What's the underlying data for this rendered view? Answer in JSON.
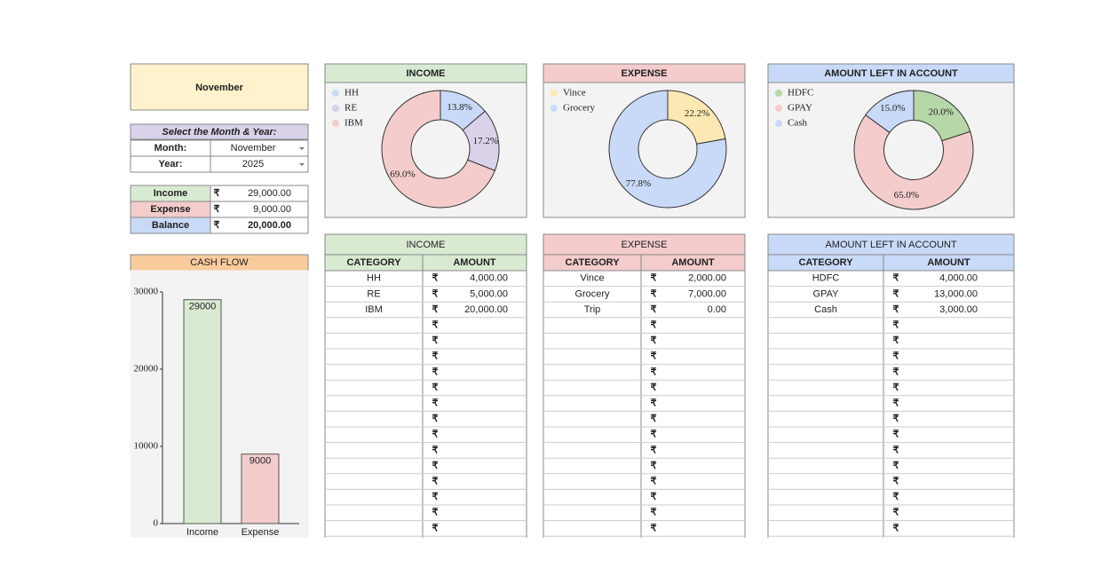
{
  "month_title": "November",
  "selector": {
    "title": "Select the Month & Year:",
    "month_label": "Month:",
    "month_value": "November",
    "year_label": "Year:",
    "year_value": "2025"
  },
  "summary": {
    "currency": "₹",
    "rows": [
      {
        "label": "Income",
        "value": "29,000.00"
      },
      {
        "label": "Expense",
        "value": "9,000.00"
      },
      {
        "label": "Balance",
        "value": "20,000.00"
      }
    ]
  },
  "chart_data": [
    {
      "type": "bar",
      "title": "CASH FLOW",
      "categories": [
        "Income",
        "Expense"
      ],
      "values": [
        29000,
        9000
      ],
      "colors": [
        "#d9ead3",
        "#f4cccc"
      ],
      "ylim": [
        0,
        30000
      ],
      "yticks": [
        0,
        10000,
        20000,
        30000
      ]
    },
    {
      "type": "donut",
      "title": "INCOME",
      "categories": [
        "HH",
        "RE",
        "IBM"
      ],
      "values": [
        13.8,
        17.2,
        69.0
      ],
      "value_labels": [
        "13.8%",
        "17.2%",
        "69.0%"
      ],
      "colors": [
        "#c9daf8",
        "#d9d2e9",
        "#f4cccc"
      ]
    },
    {
      "type": "donut",
      "title": "EXPENSE",
      "categories": [
        "Vince",
        "Grocery"
      ],
      "values": [
        22.2,
        77.8
      ],
      "value_labels": [
        "22.2%",
        "77.8%"
      ],
      "colors": [
        "#fce8b2",
        "#c9daf8"
      ]
    },
    {
      "type": "donut",
      "title": "AMOUNT LEFT IN ACCOUNT",
      "categories": [
        "HDFC",
        "GPAY",
        "Cash"
      ],
      "values": [
        20.0,
        65.0,
        15.0
      ],
      "value_labels": [
        "20.0%",
        "65.0%",
        "15.0%"
      ],
      "colors": [
        "#b6d7a8",
        "#f4cccc",
        "#c9daf8"
      ]
    }
  ],
  "tables": [
    {
      "title": "INCOME",
      "headers": [
        "CATEGORY",
        "AMOUNT"
      ],
      "currency": "₹",
      "rows": [
        [
          "HH",
          "4,000.00"
        ],
        [
          "RE",
          "5,000.00"
        ],
        [
          "IBM",
          "20,000.00"
        ]
      ]
    },
    {
      "title": "EXPENSE",
      "headers": [
        "CATEGORY",
        "AMOUNT"
      ],
      "currency": "₹",
      "rows": [
        [
          "Vince",
          "2,000.00"
        ],
        [
          "Grocery",
          "7,000.00"
        ],
        [
          "Trip",
          "0.00"
        ]
      ]
    },
    {
      "title": "AMOUNT LEFT IN ACCOUNT",
      "headers": [
        "CATEGORY",
        "AMOUNT"
      ],
      "currency": "₹",
      "rows": [
        [
          "HDFC",
          "4,000.00"
        ],
        [
          "GPAY",
          "13,000.00"
        ],
        [
          "Cash",
          "3,000.00"
        ]
      ]
    }
  ]
}
